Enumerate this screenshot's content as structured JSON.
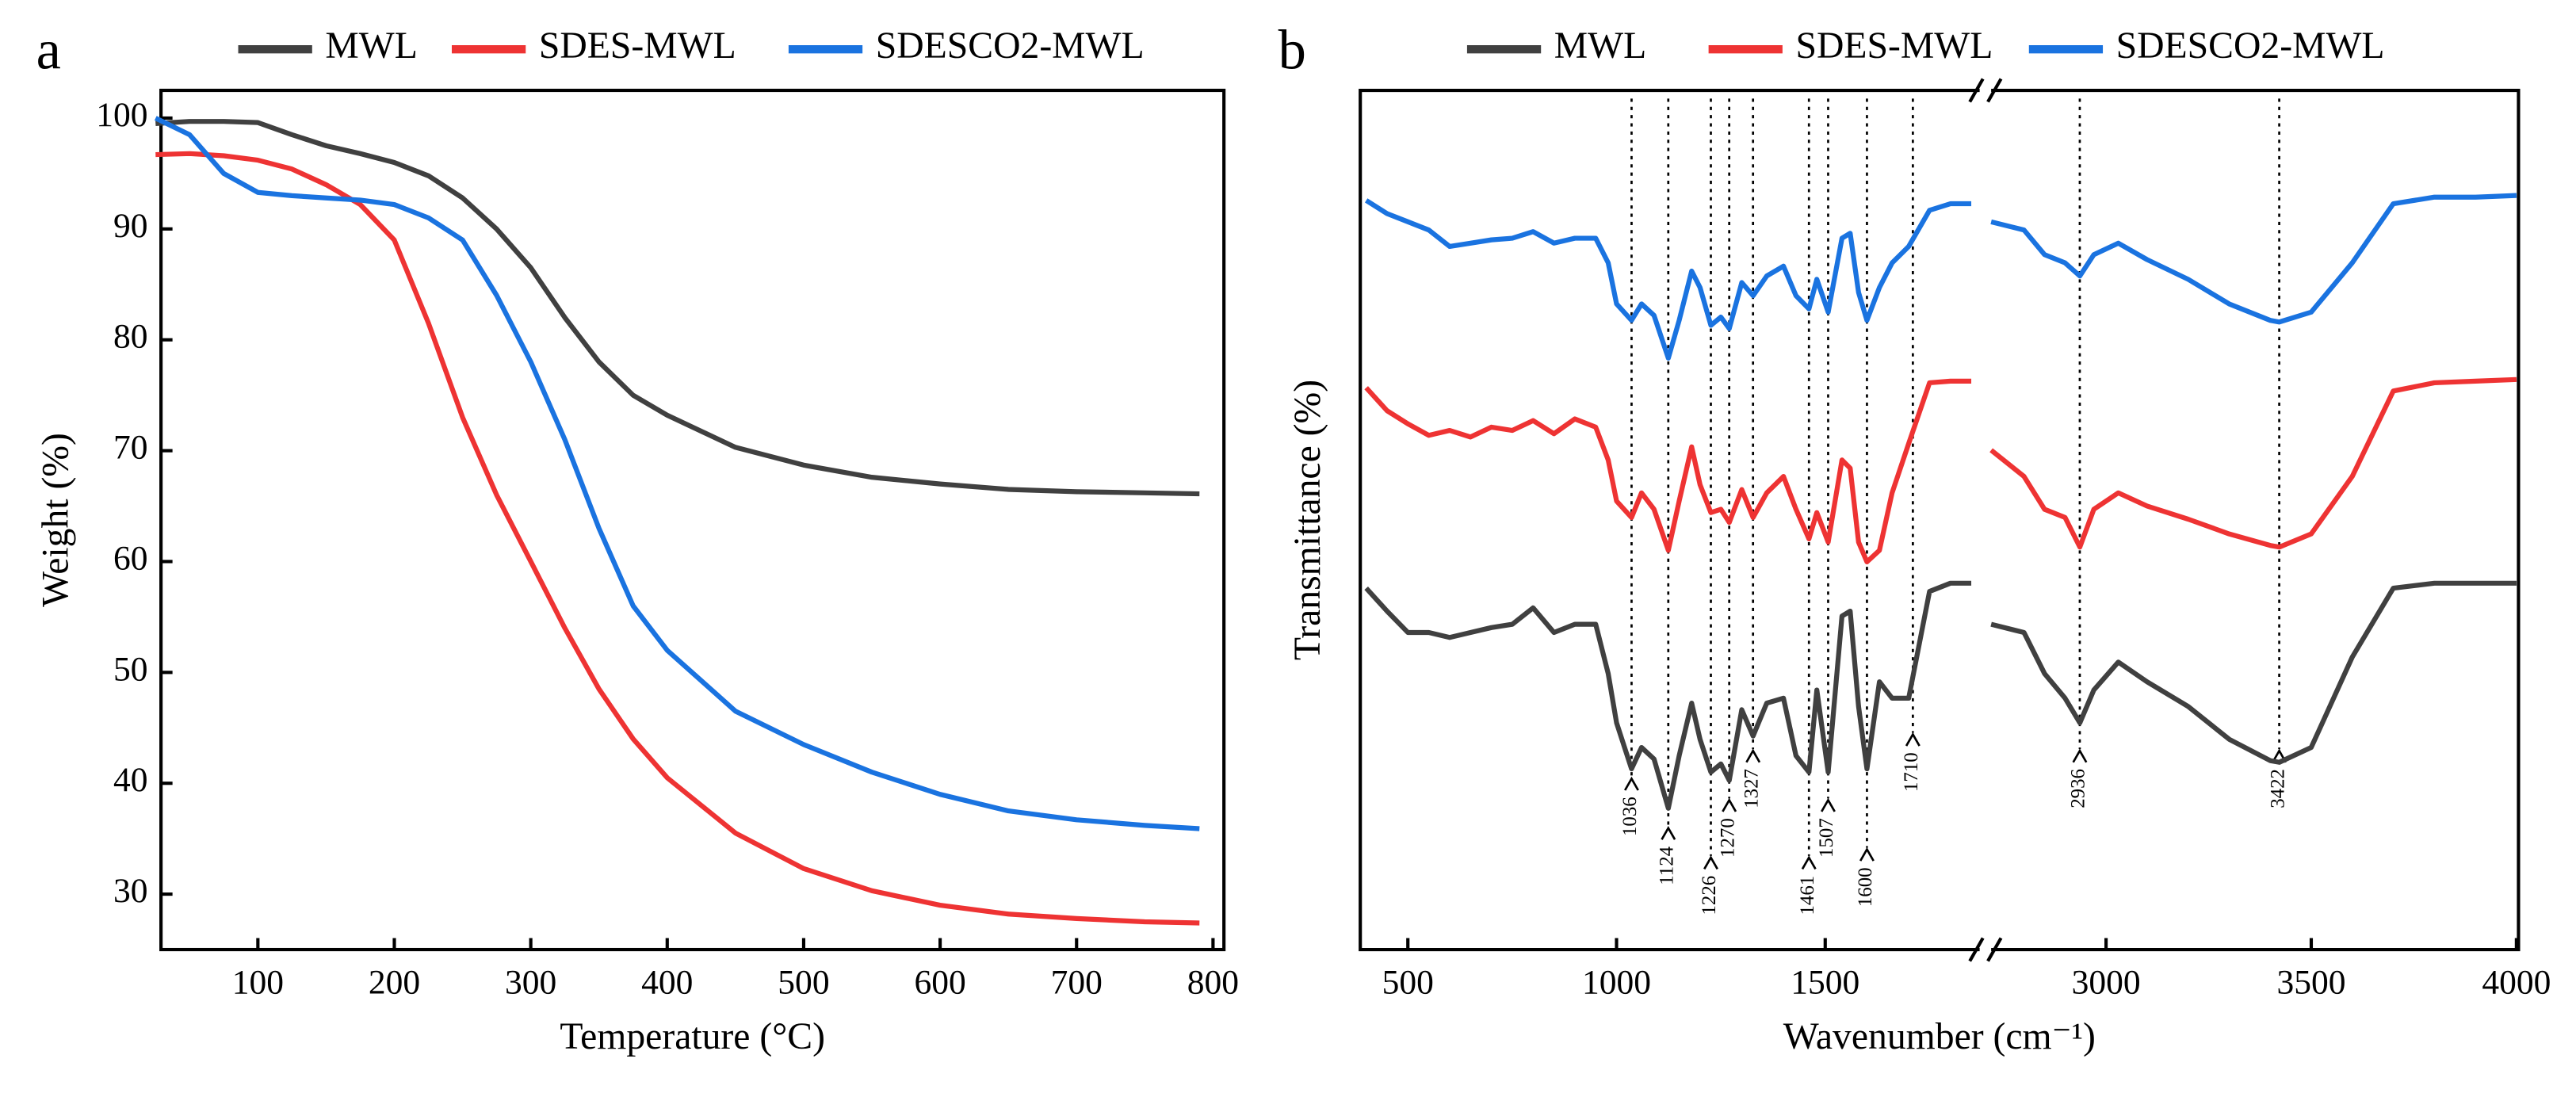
{
  "chart_data": [
    {
      "type": "line",
      "panel": "a",
      "x_label": "Temperature (°C)",
      "y_label": "Weight (%)",
      "xlim": [
        29,
        808
      ],
      "ylim": [
        25,
        102.5
      ],
      "xticks": [
        100,
        200,
        300,
        400,
        500,
        600,
        700,
        800
      ],
      "yticks": [
        30,
        40,
        50,
        60,
        70,
        80,
        90,
        100
      ],
      "x": [
        25,
        50,
        75,
        100,
        125,
        150,
        175,
        200,
        225,
        250,
        275,
        300,
        325,
        350,
        375,
        400,
        450,
        500,
        550,
        600,
        650,
        700,
        750,
        790
      ],
      "series": [
        {
          "name": "MWL",
          "color": "#404040",
          "values": [
            99.5,
            99.7,
            99.7,
            99.6,
            98.5,
            97.5,
            96.8,
            96,
            94.8,
            92.8,
            90,
            86.5,
            82,
            78,
            75,
            73.2,
            70.3,
            68.7,
            67.6,
            67,
            66.5,
            66.3,
            66.2,
            66.1
          ]
        },
        {
          "name": "SDES-MWL",
          "color": "#ee3333",
          "values": [
            96.7,
            96.8,
            96.6,
            96.2,
            95.4,
            94,
            92.2,
            89,
            81.5,
            73,
            66,
            60,
            54,
            48.5,
            44,
            40.5,
            35.5,
            32.3,
            30.3,
            29,
            28.2,
            27.8,
            27.5,
            27.4
          ]
        },
        {
          "name": "SDESCO2-MWL",
          "color": "#1a73e0",
          "values": [
            100,
            98.5,
            95,
            93.3,
            93,
            92.8,
            92.6,
            92.2,
            91,
            89,
            84,
            78,
            71,
            63,
            56,
            52,
            46.5,
            43.5,
            41,
            39,
            37.5,
            36.7,
            36.2,
            35.9
          ]
        }
      ]
    },
    {
      "type": "line",
      "panel": "b",
      "x_label": "Wavenumber (cm⁻¹)",
      "y_label": "Transmittance (%)",
      "xlim": [
        386,
        4005
      ],
      "xbreak": [
        1870,
        2720
      ],
      "ylim": [
        0,
        523
      ],
      "xticks": [
        500,
        1000,
        1500,
        3000,
        3500,
        4000
      ],
      "peaks": [
        1036,
        1124,
        1226,
        1270,
        1327,
        1461,
        1507,
        1600,
        1710,
        2936,
        3422
      ],
      "x": [
        400,
        450,
        500,
        550,
        600,
        650,
        700,
        750,
        800,
        850,
        900,
        950,
        980,
        1000,
        1036,
        1060,
        1090,
        1124,
        1150,
        1180,
        1200,
        1226,
        1250,
        1270,
        1300,
        1327,
        1360,
        1400,
        1430,
        1461,
        1480,
        1507,
        1540,
        1560,
        1580,
        1600,
        1630,
        1660,
        1700,
        1750,
        1800,
        1850,
        2720,
        2800,
        2850,
        2900,
        2936,
        2970,
        3030,
        3100,
        3200,
        3300,
        3400,
        3422,
        3500,
        3600,
        3700,
        3800,
        3900,
        4000
      ],
      "series": [
        {
          "name": "MWL",
          "color": "#404040",
          "values": [
            220,
            206,
            193,
            193,
            190,
            193,
            196,
            198,
            208,
            193,
            198,
            198,
            168,
            138,
            110,
            123,
            116,
            86,
            118,
            150,
            128,
            108,
            113,
            103,
            146,
            130,
            150,
            153,
            118,
            108,
            158,
            108,
            203,
            206,
            148,
            110,
            163,
            153,
            153,
            218,
            223,
            223,
            198,
            193,
            168,
            153,
            138,
            158,
            175,
            163,
            148,
            128,
            115,
            114,
            123,
            178,
            220,
            223,
            223,
            223
          ]
        },
        {
          "name": "SDES-MWL",
          "color": "#ee3333",
          "values": [
            342,
            328,
            320,
            313,
            316,
            312,
            318,
            316,
            322,
            314,
            323,
            318,
            298,
            273,
            263,
            278,
            268,
            243,
            273,
            306,
            283,
            266,
            268,
            260,
            280,
            263,
            278,
            288,
            268,
            250,
            266,
            248,
            298,
            293,
            248,
            236,
            243,
            278,
            308,
            345,
            346,
            346,
            304,
            288,
            268,
            263,
            245,
            268,
            278,
            270,
            262,
            253,
            246,
            245,
            253,
            288,
            340,
            345,
            346,
            347
          ]
        },
        {
          "name": "SDESCO2-MWL",
          "color": "#1a73e0",
          "values": [
            456,
            448,
            443,
            438,
            428,
            430,
            432,
            433,
            437,
            430,
            433,
            433,
            418,
            393,
            383,
            393,
            386,
            360,
            383,
            413,
            403,
            380,
            385,
            378,
            406,
            398,
            410,
            416,
            398,
            390,
            408,
            388,
            433,
            436,
            400,
            383,
            403,
            418,
            428,
            450,
            454,
            454,
            443,
            438,
            423,
            418,
            410,
            423,
            430,
            420,
            408,
            393,
            383,
            382,
            388,
            418,
            454,
            458,
            458,
            459
          ]
        }
      ]
    }
  ]
}
